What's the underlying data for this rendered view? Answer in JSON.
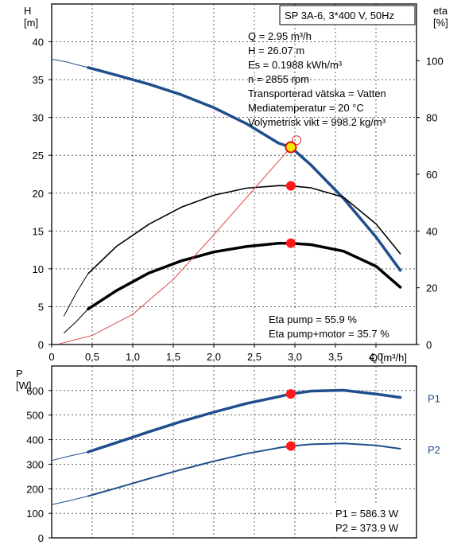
{
  "chart_data": [
    {
      "type": "line",
      "title": "SP 3A-6, 3*400 V, 50Hz",
      "ylabel_left": "H\n[m]",
      "ylabel_right": "eta\n[%]",
      "xlabel": "Q [m³/h]",
      "xlim": [
        0,
        4.5
      ],
      "ylim_left": [
        0,
        45
      ],
      "ylim_right": [
        0,
        120
      ],
      "grid": true,
      "x_ticks": [
        "0",
        "0,5",
        "1,0",
        "1,5",
        "2,0",
        "2,5",
        "3,0",
        "3,5",
        "4,0"
      ],
      "y_left_ticks": [
        "0",
        "5",
        "10",
        "15",
        "20",
        "25",
        "30",
        "35",
        "40"
      ],
      "y_right_ticks": [
        "0",
        "20",
        "40",
        "60",
        "80",
        "100"
      ],
      "info_lines": [
        "Q = 2.95 m³/h",
        "H = 26.07 m",
        "Es = 0.1988 kWh/m³",
        "n = 2855 rpm",
        "Transporterad vätska = Vatten",
        "Mediatemperatur = 20 °C",
        "Volymetrisk vikt = 998.2 kg/m³"
      ],
      "eta_lines": [
        "Eta pump = 55.9 %",
        "Eta pump+motor = 35.7 %"
      ],
      "series": [
        {
          "name": "H",
          "axis": "left",
          "color": "#1f4e8c",
          "extension_x": [
            0,
            0.1,
            0.2,
            0.3,
            0.45
          ],
          "extension_y": [
            37.7,
            37.5,
            37.3,
            37.0,
            36.6
          ],
          "x": [
            0.45,
            0.8,
            1.2,
            1.6,
            2.0,
            2.4,
            2.8,
            2.95,
            3.2,
            3.6,
            4.0,
            4.3
          ],
          "y": [
            36.6,
            35.6,
            34.4,
            33.0,
            31.3,
            29.2,
            26.6,
            26.07,
            23.7,
            19.3,
            14.2,
            9.8
          ]
        },
        {
          "name": "Eta pump",
          "axis": "right",
          "color": "#000000",
          "extension_x": [
            0.15,
            0.3,
            0.45
          ],
          "extension_y": [
            10,
            18,
            25
          ],
          "x": [
            0.45,
            0.8,
            1.2,
            1.6,
            2.0,
            2.4,
            2.8,
            2.95,
            3.2,
            3.6,
            4.0,
            4.3
          ],
          "y": [
            25,
            34.6,
            42.4,
            48.4,
            52.6,
            55.1,
            56.0,
            55.9,
            55.2,
            51.9,
            42.5,
            32.0
          ]
        },
        {
          "name": "Eta pump+motor",
          "axis": "right",
          "color": "#000000",
          "extension_x": [
            0.15,
            0.3,
            0.45
          ],
          "extension_y": [
            4,
            8,
            12.5
          ],
          "x": [
            0.45,
            0.8,
            1.2,
            1.6,
            2.0,
            2.4,
            2.8,
            2.95,
            3.2,
            3.6,
            4.0,
            4.3
          ],
          "y": [
            12.5,
            19.0,
            25.2,
            29.5,
            32.6,
            34.5,
            35.7,
            35.7,
            35.2,
            32.9,
            27.6,
            20.2
          ]
        },
        {
          "name": "System curve",
          "axis": "left",
          "color": "#e03030",
          "x": [
            0.1,
            0.5,
            1.0,
            1.5,
            2.0,
            2.5,
            2.95
          ],
          "y": [
            0.1,
            1.2,
            4.0,
            8.6,
            14.5,
            20.6,
            26.07
          ]
        }
      ],
      "operating_points": [
        {
          "x": 2.95,
          "y": 26.07,
          "axis": "left",
          "style": "yellow"
        },
        {
          "x": 2.95,
          "y": 55.9,
          "axis": "right",
          "style": "red"
        },
        {
          "x": 2.95,
          "y": 35.7,
          "axis": "right",
          "style": "red"
        }
      ]
    },
    {
      "type": "line",
      "ylabel": "P\n[W]",
      "xlim": [
        0,
        4.5
      ],
      "ylim": [
        0,
        700
      ],
      "grid": true,
      "y_ticks": [
        "0",
        "100",
        "200",
        "300",
        "400",
        "500",
        "600"
      ],
      "power_lines": [
        "P1 = 586.3 W",
        "P2 = 373.9 W"
      ],
      "series": [
        {
          "name": "P1",
          "color": "#1f4e8c",
          "extension_x": [
            0,
            0.2,
            0.45
          ],
          "extension_y": [
            315,
            332,
            350
          ],
          "x": [
            0.45,
            0.8,
            1.2,
            1.6,
            2.0,
            2.4,
            2.8,
            2.95,
            3.2,
            3.6,
            4.0,
            4.3
          ],
          "y": [
            350,
            388,
            432,
            474,
            512,
            547,
            575,
            586.3,
            598,
            601,
            586,
            572
          ]
        },
        {
          "name": "P2",
          "color": "#1f4e8c",
          "extension_x": [
            0,
            0.2,
            0.45
          ],
          "extension_y": [
            135,
            150,
            170
          ],
          "x": [
            0.45,
            0.8,
            1.2,
            1.6,
            2.0,
            2.4,
            2.8,
            2.95,
            3.2,
            3.6,
            4.0,
            4.3
          ],
          "y": [
            170,
            203,
            241,
            278,
            312,
            343,
            367,
            373.9,
            381,
            385,
            377,
            363
          ]
        }
      ],
      "operating_points": [
        {
          "x": 2.95,
          "y": 586.3,
          "style": "red"
        },
        {
          "x": 2.95,
          "y": 373.9,
          "style": "red"
        }
      ]
    }
  ]
}
